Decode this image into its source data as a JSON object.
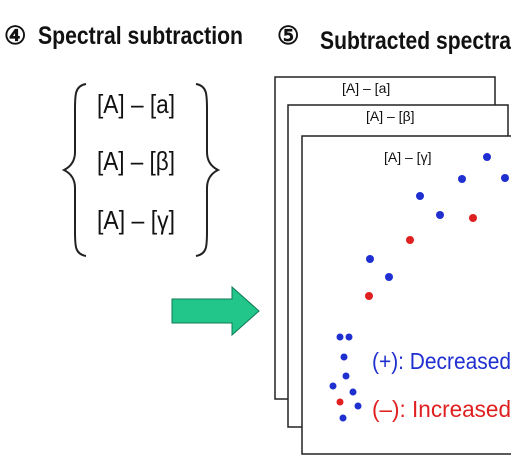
{
  "step4": {
    "number": "④",
    "title": "Spectral subtraction"
  },
  "step5": {
    "number": "⑤",
    "title": "Subtracted spectra"
  },
  "formulas": [
    "[A] – [a]",
    "[A] – [β]",
    "[A] – [γ]"
  ],
  "cards": [
    "[A] – [a]",
    "[A] – [β]",
    "[A] – [γ]"
  ],
  "legend": {
    "plus": {
      "text": "(+): Decreased",
      "color": "#1f2fd0"
    },
    "minus": {
      "text": "(–): Increased",
      "color": "#e02020"
    }
  },
  "colors": {
    "arrow": "#22c58a",
    "blue": "#1f2fd0",
    "red": "#e02020"
  }
}
